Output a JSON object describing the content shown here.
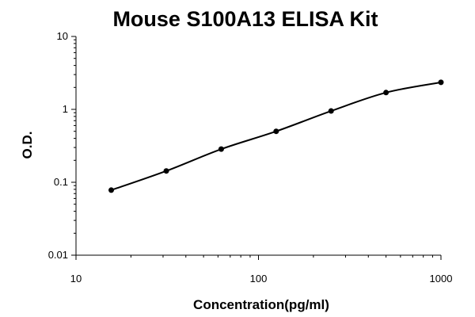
{
  "chart_data": {
    "type": "scatter",
    "title": "Mouse S100A13 ELISA Kit",
    "xlabel": "Concentration(pg/ml)",
    "ylabel": "O.D.",
    "x_scale": "log",
    "y_scale": "log",
    "xlim": [
      10,
      1000
    ],
    "ylim": [
      0.01,
      10
    ],
    "x_ticks": [
      10,
      100,
      1000
    ],
    "x_tick_labels": [
      "10",
      "100",
      "1000"
    ],
    "y_ticks": [
      0.01,
      0.1,
      1,
      10
    ],
    "y_tick_labels": [
      "0.01",
      "0.1",
      "1",
      "10"
    ],
    "grid": false,
    "legend": "none",
    "series": [
      {
        "x": [
          15.6,
          31.25,
          62.5,
          125,
          250,
          500,
          1000
        ],
        "y": [
          0.078,
          0.143,
          0.285,
          0.5,
          0.95,
          1.7,
          2.35
        ],
        "fit_curve": true
      }
    ],
    "colors": {
      "line": "#000000",
      "marker": "#000000",
      "axis": "#000000"
    }
  }
}
